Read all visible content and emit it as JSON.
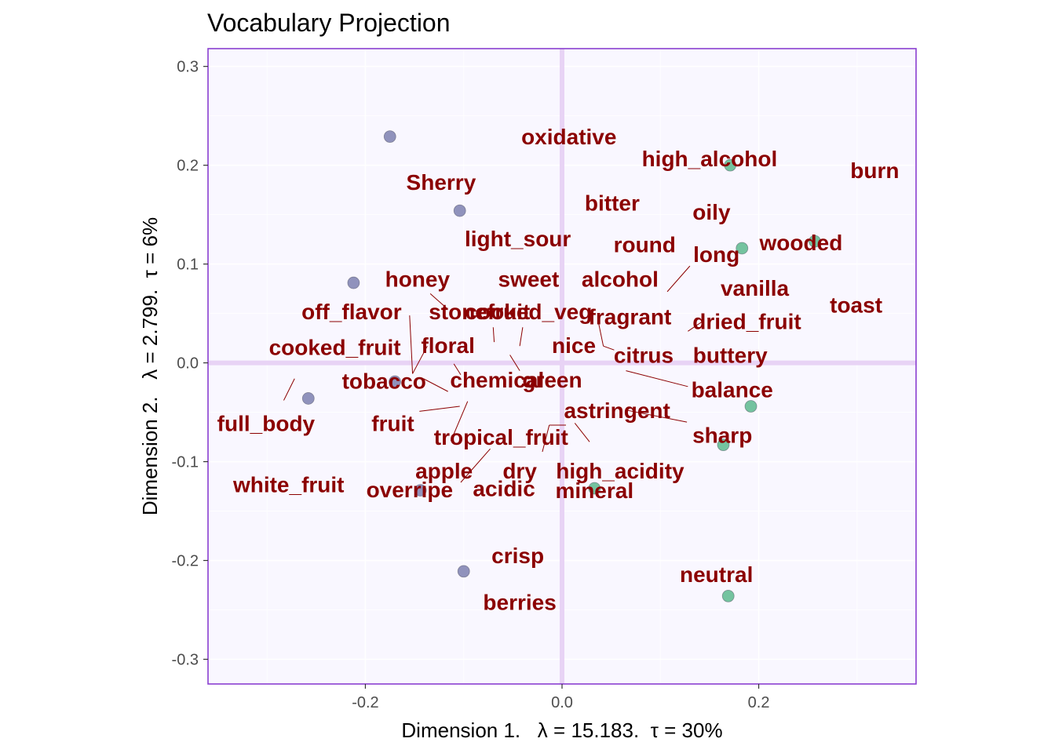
{
  "chart_data": {
    "type": "scatter",
    "title": "Vocabulary Projection",
    "xlabel": "Dimension 1.   λ = 15.183.  τ = 30%",
    "ylabel": "Dimension 2.   λ = 2.799.  τ = 6%",
    "xlim": [
      -0.36,
      0.36
    ],
    "ylim": [
      -0.325,
      0.318
    ],
    "x_ticks": [
      -0.2,
      0.0,
      0.2
    ],
    "y_ticks": [
      -0.3,
      -0.2,
      -0.1,
      0.0,
      0.1,
      0.2,
      0.3
    ],
    "x_tick_labels": [
      "-0.2",
      "0.0",
      "0.2"
    ],
    "y_tick_labels": [
      "-0.3",
      "-0.2",
      "-0.1",
      "0.0",
      "0.1",
      "0.2",
      "0.3"
    ],
    "grid": true,
    "colors": {
      "panel_background": "#f9f7ff",
      "panel_border": "#8a3fd0",
      "zero_lines": "#e8d3f5",
      "grid": "#ffffff",
      "label_text": "#8b0000",
      "group_1_points": "#8a8cb8",
      "group_2_points": "#6dc09a"
    },
    "point_series": [
      {
        "color": "#8a8cb8",
        "points": [
          {
            "x": -0.175,
            "y": 0.229
          },
          {
            "x": -0.104,
            "y": 0.154
          },
          {
            "x": -0.212,
            "y": 0.081
          },
          {
            "x": -0.258,
            "y": -0.036
          },
          {
            "x": -0.17,
            "y": -0.019
          },
          {
            "x": -0.144,
            "y": -0.129
          },
          {
            "x": -0.1,
            "y": -0.211
          }
        ]
      },
      {
        "color": "#6dc09a",
        "points": [
          {
            "x": 0.171,
            "y": 0.2
          },
          {
            "x": 0.183,
            "y": 0.116
          },
          {
            "x": 0.257,
            "y": 0.123
          },
          {
            "x": 0.192,
            "y": -0.044
          },
          {
            "x": 0.164,
            "y": -0.083
          },
          {
            "x": 0.033,
            "y": -0.127
          },
          {
            "x": 0.169,
            "y": -0.236
          }
        ]
      }
    ],
    "labels": [
      {
        "text": "oxidative",
        "x": 0.007,
        "y": 0.229
      },
      {
        "text": "high_alcohol",
        "x": 0.15,
        "y": 0.207
      },
      {
        "text": "burn",
        "x": 0.318,
        "y": 0.195
      },
      {
        "text": "Sherry",
        "x": -0.123,
        "y": 0.183
      },
      {
        "text": "bitter",
        "x": 0.051,
        "y": 0.162
      },
      {
        "text": "oily",
        "x": 0.152,
        "y": 0.153
      },
      {
        "text": "light_sour",
        "x": -0.045,
        "y": 0.126
      },
      {
        "text": "round",
        "x": 0.084,
        "y": 0.12
      },
      {
        "text": "long",
        "x": 0.157,
        "y": 0.11
      },
      {
        "text": "wooded",
        "x": 0.243,
        "y": 0.122
      },
      {
        "text": "honey",
        "x": -0.147,
        "y": 0.085
      },
      {
        "text": "sweet",
        "x": -0.034,
        "y": 0.085
      },
      {
        "text": "alcohol",
        "x": 0.059,
        "y": 0.085
      },
      {
        "text": "vanilla",
        "x": 0.196,
        "y": 0.076
      },
      {
        "text": "toast",
        "x": 0.299,
        "y": 0.059
      },
      {
        "text": "off_flavor",
        "x": -0.214,
        "y": 0.052
      },
      {
        "text": "stonefruit",
        "x": -0.084,
        "y": 0.052
      },
      {
        "text": "cooked_veg",
        "x": -0.034,
        "y": 0.052
      },
      {
        "text": "fragrant",
        "x": 0.069,
        "y": 0.047
      },
      {
        "text": "dried_fruit",
        "x": 0.188,
        "y": 0.042
      },
      {
        "text": "cooked_fruit",
        "x": -0.231,
        "y": 0.016
      },
      {
        "text": "floral",
        "x": -0.116,
        "y": 0.018
      },
      {
        "text": "nice",
        "x": 0.012,
        "y": 0.018
      },
      {
        "text": "citrus",
        "x": 0.083,
        "y": 0.008
      },
      {
        "text": "buttery",
        "x": 0.171,
        "y": 0.008
      },
      {
        "text": "tobacco",
        "x": -0.181,
        "y": -0.018
      },
      {
        "text": "chemical",
        "x": -0.066,
        "y": -0.017
      },
      {
        "text": "green",
        "x": -0.01,
        "y": -0.017
      },
      {
        "text": "balance",
        "x": 0.173,
        "y": -0.027
      },
      {
        "text": "full_body",
        "x": -0.301,
        "y": -0.061
      },
      {
        "text": "fruit",
        "x": -0.172,
        "y": -0.061
      },
      {
        "text": "astringent",
        "x": 0.056,
        "y": -0.048
      },
      {
        "text": "tropical_fruit",
        "x": -0.062,
        "y": -0.075
      },
      {
        "text": "sharp",
        "x": 0.163,
        "y": -0.073
      },
      {
        "text": "apple",
        "x": -0.12,
        "y": -0.109
      },
      {
        "text": "dry",
        "x": -0.043,
        "y": -0.109
      },
      {
        "text": "high_acidity",
        "x": 0.059,
        "y": -0.109
      },
      {
        "text": "white_fruit",
        "x": -0.278,
        "y": -0.123
      },
      {
        "text": "overripe",
        "x": -0.155,
        "y": -0.128
      },
      {
        "text": "acidic",
        "x": -0.059,
        "y": -0.127
      },
      {
        "text": "mineral",
        "x": 0.033,
        "y": -0.129
      },
      {
        "text": "crisp",
        "x": -0.045,
        "y": -0.195
      },
      {
        "text": "neutral",
        "x": 0.157,
        "y": -0.214
      },
      {
        "text": "berries",
        "x": -0.043,
        "y": -0.242
      }
    ],
    "connectors": [
      {
        "x1": 0.107,
        "y1": 0.072,
        "x2": 0.13,
        "y2": 0.098
      },
      {
        "x1": -0.134,
        "y1": 0.07,
        "x2": -0.117,
        "y2": 0.055
      },
      {
        "x1": -0.155,
        "y1": 0.048,
        "x2": -0.152,
        "y2": -0.011
      },
      {
        "x1": -0.152,
        "y1": -0.011,
        "x2": -0.137,
        "y2": 0.017
      },
      {
        "x1": -0.07,
        "y1": 0.036,
        "x2": -0.069,
        "y2": 0.021
      },
      {
        "x1": -0.04,
        "y1": 0.036,
        "x2": -0.043,
        "y2": 0.017
      },
      {
        "x1": 0.037,
        "y1": 0.041,
        "x2": 0.042,
        "y2": 0.017
      },
      {
        "x1": 0.042,
        "y1": 0.017,
        "x2": 0.053,
        "y2": 0.013
      },
      {
        "x1": 0.128,
        "y1": 0.032,
        "x2": 0.143,
        "y2": 0.042
      },
      {
        "x1": -0.283,
        "y1": -0.038,
        "x2": -0.272,
        "y2": -0.016
      },
      {
        "x1": -0.141,
        "y1": -0.016,
        "x2": -0.116,
        "y2": -0.029
      },
      {
        "x1": -0.11,
        "y1": -0.001,
        "x2": -0.103,
        "y2": -0.012
      },
      {
        "x1": -0.053,
        "y1": 0.008,
        "x2": -0.043,
        "y2": -0.008
      },
      {
        "x1": -0.145,
        "y1": -0.049,
        "x2": -0.104,
        "y2": -0.044
      },
      {
        "x1": 0.065,
        "y1": -0.008,
        "x2": 0.128,
        "y2": -0.024
      },
      {
        "x1": -0.096,
        "y1": -0.039,
        "x2": -0.113,
        "y2": -0.079
      },
      {
        "x1": -0.02,
        "y1": -0.09,
        "x2": -0.013,
        "y2": -0.063
      },
      {
        "x1": -0.013,
        "y1": -0.063,
        "x2": 0.004,
        "y2": -0.063
      },
      {
        "x1": 0.013,
        "y1": -0.061,
        "x2": 0.028,
        "y2": -0.08
      },
      {
        "x1": -0.073,
        "y1": -0.087,
        "x2": -0.103,
        "y2": -0.121
      },
      {
        "x1": 0.066,
        "y1": -0.048,
        "x2": 0.127,
        "y2": -0.06
      }
    ]
  }
}
